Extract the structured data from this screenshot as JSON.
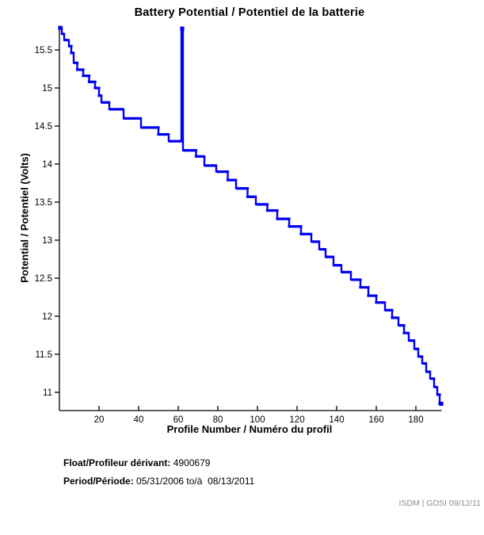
{
  "title": "Battery Potential / Potentiel de la batterie",
  "chart_data": {
    "type": "line",
    "title": "Battery Potential / Potentiel de la batterie",
    "xlabel": "Profile Number / Numéro du profil",
    "ylabel": "Potential / Potentiel (Volts)",
    "line_color": "#0000f2",
    "axis_color": "#000000",
    "xlim": [
      0,
      193
    ],
    "ylim": [
      10.76,
      15.81
    ],
    "x_ticks": [
      20,
      40,
      60,
      80,
      100,
      120,
      140,
      160,
      180
    ],
    "y_ticks": [
      11,
      11.5,
      12,
      12.5,
      13,
      13.5,
      14,
      14.5,
      15,
      15.5
    ],
    "grid": false,
    "legend": false,
    "spike": {
      "profile": 62,
      "peak_v": 15.78
    },
    "steps": [
      {
        "from": 0.4,
        "to": 1.2,
        "v": 15.79
      },
      {
        "from": 1.2,
        "to": 2.4,
        "v": 15.71
      },
      {
        "from": 2.4,
        "to": 4.8,
        "v": 15.63
      },
      {
        "from": 4.8,
        "to": 6.0,
        "v": 15.55
      },
      {
        "from": 6.0,
        "to": 7.2,
        "v": 15.46
      },
      {
        "from": 7.2,
        "to": 9.0,
        "v": 15.33
      },
      {
        "from": 9.0,
        "to": 12.0,
        "v": 15.24
      },
      {
        "from": 12.0,
        "to": 15.0,
        "v": 15.16
      },
      {
        "from": 15.0,
        "to": 18.0,
        "v": 15.08
      },
      {
        "from": 18.0,
        "to": 20.0,
        "v": 15.0
      },
      {
        "from": 20.0,
        "to": 21.2,
        "v": 14.9
      },
      {
        "from": 21.2,
        "to": 25.2,
        "v": 14.81
      },
      {
        "from": 25.2,
        "to": 32.4,
        "v": 14.72
      },
      {
        "from": 32.4,
        "to": 41.2,
        "v": 14.6
      },
      {
        "from": 41.2,
        "to": 50.0,
        "v": 14.48
      },
      {
        "from": 50.0,
        "to": 55.2,
        "v": 14.39
      },
      {
        "from": 55.2,
        "to": 61.6,
        "v": 14.3
      },
      {
        "from": 61.6,
        "to": 62.4,
        "v": 15.78
      },
      {
        "from": 62.4,
        "to": 69.0,
        "v": 14.18
      },
      {
        "from": 69.0,
        "to": 73.2,
        "v": 14.1
      },
      {
        "from": 73.2,
        "to": 79.2,
        "v": 13.98
      },
      {
        "from": 79.2,
        "to": 85.0,
        "v": 13.9
      },
      {
        "from": 85.0,
        "to": 89.2,
        "v": 13.79
      },
      {
        "from": 89.2,
        "to": 95.0,
        "v": 13.68
      },
      {
        "from": 95.0,
        "to": 99.2,
        "v": 13.57
      },
      {
        "from": 99.2,
        "to": 105.0,
        "v": 13.47
      },
      {
        "from": 105.0,
        "to": 110.0,
        "v": 13.39
      },
      {
        "from": 110.0,
        "to": 116.0,
        "v": 13.28
      },
      {
        "from": 116.0,
        "to": 122.0,
        "v": 13.18
      },
      {
        "from": 122.0,
        "to": 127.2,
        "v": 13.08
      },
      {
        "from": 127.2,
        "to": 131.2,
        "v": 12.98
      },
      {
        "from": 131.2,
        "to": 134.4,
        "v": 12.88
      },
      {
        "from": 134.4,
        "to": 138.4,
        "v": 12.78
      },
      {
        "from": 138.4,
        "to": 142.4,
        "v": 12.67
      },
      {
        "from": 142.4,
        "to": 147.2,
        "v": 12.58
      },
      {
        "from": 147.2,
        "to": 152.0,
        "v": 12.48
      },
      {
        "from": 152.0,
        "to": 156.0,
        "v": 12.38
      },
      {
        "from": 156.0,
        "to": 160.0,
        "v": 12.27
      },
      {
        "from": 160.0,
        "to": 164.4,
        "v": 12.18
      },
      {
        "from": 164.4,
        "to": 168.0,
        "v": 12.08
      },
      {
        "from": 168.0,
        "to": 171.2,
        "v": 11.98
      },
      {
        "from": 171.2,
        "to": 174.0,
        "v": 11.88
      },
      {
        "from": 174.0,
        "to": 176.4,
        "v": 11.78
      },
      {
        "from": 176.4,
        "to": 179.2,
        "v": 11.68
      },
      {
        "from": 179.2,
        "to": 181.2,
        "v": 11.57
      },
      {
        "from": 181.2,
        "to": 183.2,
        "v": 11.47
      },
      {
        "from": 183.2,
        "to": 185.2,
        "v": 11.38
      },
      {
        "from": 185.2,
        "to": 187.2,
        "v": 11.27
      },
      {
        "from": 187.2,
        "to": 189.2,
        "v": 11.18
      },
      {
        "from": 189.2,
        "to": 190.8,
        "v": 11.07
      },
      {
        "from": 190.8,
        "to": 192.0,
        "v": 10.97
      },
      {
        "from": 192.0,
        "to": 192.8,
        "v": 10.85
      }
    ]
  },
  "footer": {
    "float_label": "Float/Profileur dérivant:",
    "float_value": "4900679",
    "period_label": "Period/Période:",
    "period_value": "05/31/2006 to/à  08/13/2011"
  },
  "watermark": "ISDM | GDSI 09/12/11"
}
